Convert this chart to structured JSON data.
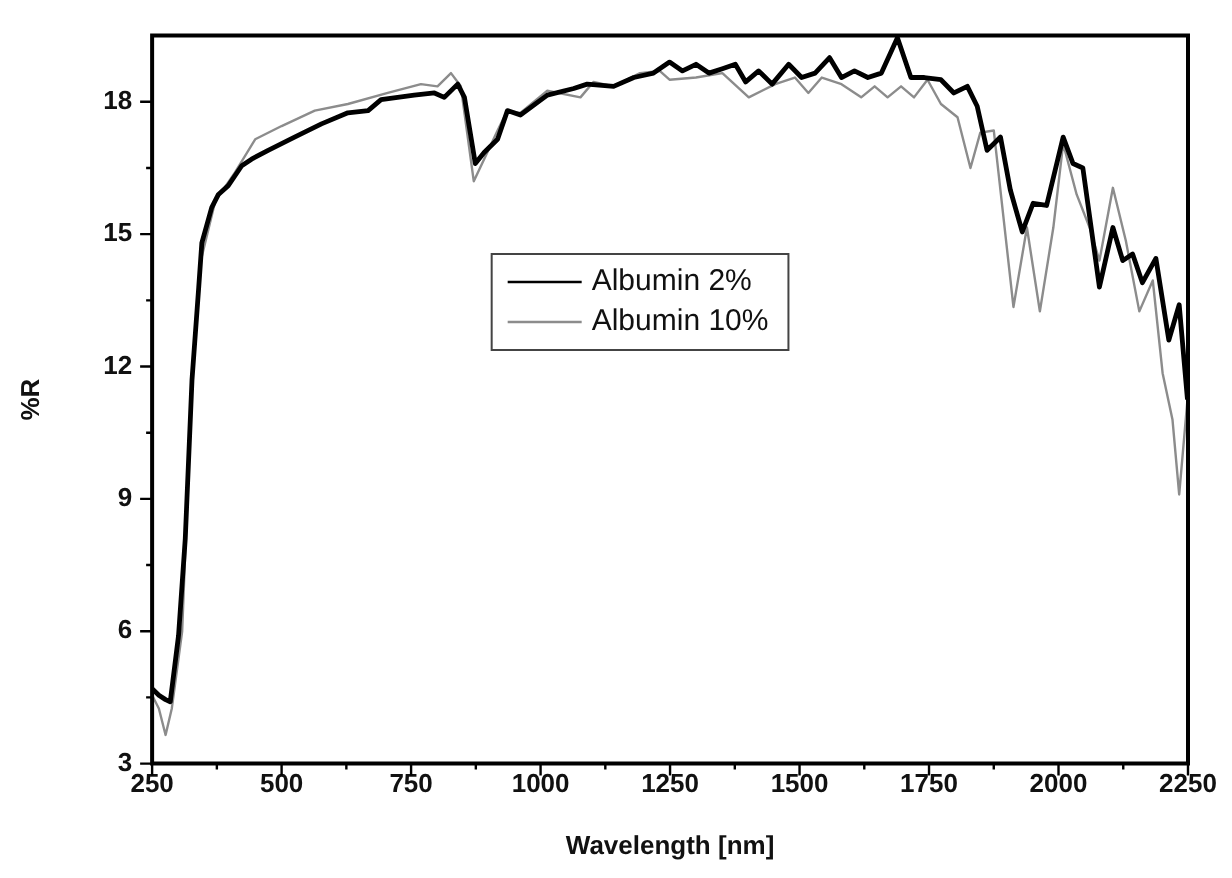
{
  "chart_data": {
    "type": "line",
    "xlabel": "Wavelength [nm]",
    "ylabel": "%R",
    "xlim": [
      250,
      2250
    ],
    "xticks": [
      250,
      500,
      750,
      1000,
      1250,
      1500,
      1750,
      2000,
      2250
    ],
    "ylim": [
      3,
      19.5
    ],
    "yticks": [
      3,
      6,
      9,
      12,
      15,
      18
    ],
    "grid": false,
    "legend": "top",
    "marker": "none",
    "line_style": "solid",
    "series": [
      {
        "name": "Albumin 2%",
        "color": "#000000",
        "x": [
          250,
          263,
          276,
          285,
          301,
          314,
          327,
          340,
          346,
          365,
          378,
          397,
          423,
          442,
          474,
          525,
          577,
          628,
          667,
          692,
          756,
          795,
          814,
          840,
          853,
          874,
          891,
          917,
          936,
          961,
          1013,
          1064,
          1090,
          1141,
          1180,
          1218,
          1249,
          1274,
          1300,
          1325,
          1351,
          1376,
          1396,
          1421,
          1447,
          1479,
          1504,
          1530,
          1558,
          1581,
          1606,
          1632,
          1658,
          1689,
          1715,
          1741,
          1773,
          1798,
          1824,
          1843,
          1862,
          1875,
          1888,
          1907,
          1930,
          1951,
          1977,
          2009,
          2028,
          2047,
          2079,
          2105,
          2124,
          2143,
          2162,
          2188,
          2213,
          2233,
          2249
        ],
        "values": [
          4.7,
          4.55,
          4.45,
          4.4,
          5.9,
          8.1,
          11.7,
          13.8,
          14.8,
          15.6,
          15.9,
          16.1,
          16.55,
          16.7,
          16.9,
          17.2,
          17.5,
          17.75,
          17.8,
          18.05,
          18.15,
          18.2,
          18.1,
          18.4,
          18.1,
          16.6,
          16.85,
          17.15,
          17.8,
          17.7,
          18.15,
          18.3,
          18.4,
          18.35,
          18.55,
          18.65,
          18.9,
          18.7,
          18.85,
          18.65,
          18.75,
          18.85,
          18.45,
          18.7,
          18.4,
          18.85,
          18.55,
          18.65,
          19.0,
          18.55,
          18.7,
          18.55,
          18.65,
          19.45,
          18.55,
          18.55,
          18.5,
          18.2,
          18.35,
          17.9,
          16.9,
          17.05,
          17.2,
          16.0,
          15.05,
          15.7,
          15.65,
          17.2,
          16.6,
          16.5,
          13.8,
          15.15,
          14.4,
          14.55,
          13.9,
          14.45,
          12.6,
          13.4,
          11.25
        ]
      },
      {
        "name": "Albumin 10%",
        "color": "#8c8c8c",
        "x": [
          250,
          263,
          276,
          288,
          308,
          327,
          344,
          372,
          410,
          449,
          500,
          564,
          628,
          705,
          769,
          801,
          827,
          846,
          871,
          891,
          917,
          936,
          961,
          1013,
          1077,
          1102,
          1141,
          1192,
          1230,
          1249,
          1300,
          1351,
          1402,
          1453,
          1491,
          1517,
          1543,
          1581,
          1619,
          1645,
          1670,
          1696,
          1721,
          1747,
          1773,
          1805,
          1830,
          1849,
          1875,
          1913,
          1939,
          1964,
          1990,
          2009,
          2035,
          2060,
          2079,
          2105,
          2130,
          2156,
          2182,
          2201,
          2220,
          2233,
          2249
        ],
        "values": [
          4.55,
          4.25,
          3.65,
          4.25,
          6.0,
          11.7,
          14.4,
          15.75,
          16.4,
          17.15,
          17.45,
          17.8,
          17.95,
          18.2,
          18.4,
          18.35,
          18.65,
          18.35,
          16.2,
          16.7,
          17.35,
          17.8,
          17.75,
          18.25,
          18.1,
          18.45,
          18.35,
          18.65,
          18.7,
          18.5,
          18.55,
          18.65,
          18.1,
          18.4,
          18.55,
          18.2,
          18.55,
          18.4,
          18.1,
          18.35,
          18.1,
          18.35,
          18.1,
          18.5,
          17.95,
          17.65,
          16.5,
          17.3,
          17.35,
          13.35,
          15.15,
          13.25,
          15.15,
          17.05,
          15.9,
          15.15,
          14.4,
          16.05,
          14.85,
          13.25,
          13.95,
          11.85,
          10.8,
          9.1,
          11.25
        ]
      }
    ]
  }
}
